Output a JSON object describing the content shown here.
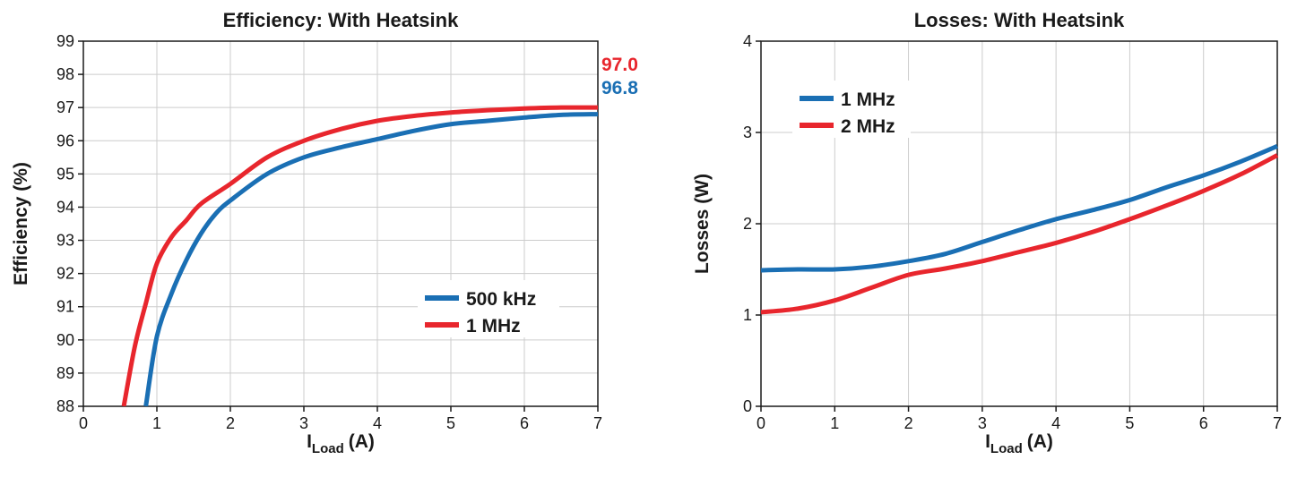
{
  "colors": {
    "blue": "#1a6fb4",
    "red": "#e8262d",
    "grid": "#cccccc",
    "axis": "#1a1a1a"
  },
  "chart_data": [
    {
      "type": "line",
      "title": "Efficiency: With Heatsink",
      "xlabel_main": "I",
      "xlabel_sub": "Load",
      "xlabel_unit": "(A)",
      "ylabel": "Efficiency (%)",
      "xlim": [
        0,
        7
      ],
      "ylim": [
        88,
        99
      ],
      "xticks": [
        "0",
        "1",
        "2",
        "3",
        "4",
        "5",
        "6",
        "7"
      ],
      "yticks": [
        "88",
        "89",
        "90",
        "91",
        "92",
        "93",
        "94",
        "95",
        "96",
        "97",
        "98",
        "99"
      ],
      "grid": true,
      "legend_position": "lower-right",
      "end_labels": [
        {
          "text": "97.0",
          "color": "#e8262d",
          "y": 97.0
        },
        {
          "text": "96.8",
          "color": "#1a6fb4",
          "y": 96.8
        }
      ],
      "series": [
        {
          "name": "500 kHz",
          "color": "#1a6fb4",
          "x": [
            0.85,
            1.0,
            1.2,
            1.4,
            1.6,
            1.8,
            2.0,
            2.5,
            3.0,
            3.5,
            4.0,
            4.5,
            5.0,
            5.5,
            6.0,
            6.5,
            7.0
          ],
          "y": [
            88.0,
            90.1,
            91.4,
            92.4,
            93.2,
            93.8,
            94.2,
            95.0,
            95.5,
            95.8,
            96.05,
            96.3,
            96.5,
            96.6,
            96.7,
            96.78,
            96.8
          ]
        },
        {
          "name": "1 MHz",
          "color": "#e8262d",
          "x": [
            0.55,
            0.7,
            0.85,
            1.0,
            1.2,
            1.4,
            1.6,
            2.0,
            2.5,
            3.0,
            3.5,
            4.0,
            4.5,
            5.0,
            5.5,
            6.0,
            6.5,
            7.0
          ],
          "y": [
            88.0,
            89.8,
            91.1,
            92.3,
            93.1,
            93.6,
            94.1,
            94.7,
            95.5,
            96.0,
            96.35,
            96.6,
            96.75,
            96.85,
            96.92,
            96.97,
            97.0,
            97.0
          ]
        }
      ]
    },
    {
      "type": "line",
      "title": "Losses: With Heatsink",
      "xlabel_main": "I",
      "xlabel_sub": "Load",
      "xlabel_unit": "(A)",
      "ylabel": "Losses (W)",
      "xlim": [
        0,
        7
      ],
      "ylim": [
        0,
        4
      ],
      "xticks": [
        "0",
        "1",
        "2",
        "3",
        "4",
        "5",
        "6",
        "7"
      ],
      "yticks": [
        "0",
        "1",
        "2",
        "3",
        "4"
      ],
      "grid": true,
      "legend_position": "top-left",
      "end_labels": [],
      "series": [
        {
          "name": "1 MHz",
          "color": "#1a6fb4",
          "x": [
            0,
            0.5,
            1.0,
            1.5,
            2.0,
            2.5,
            3.0,
            3.5,
            4.0,
            4.5,
            5.0,
            5.5,
            6.0,
            6.5,
            7.0
          ],
          "y": [
            1.49,
            1.5,
            1.5,
            1.53,
            1.59,
            1.67,
            1.8,
            1.93,
            2.05,
            2.15,
            2.26,
            2.4,
            2.53,
            2.68,
            2.85
          ]
        },
        {
          "name": "2 MHz",
          "color": "#e8262d",
          "x": [
            0,
            0.5,
            1.0,
            1.5,
            2.0,
            2.5,
            3.0,
            3.5,
            4.0,
            4.5,
            5.0,
            5.5,
            6.0,
            6.5,
            7.0
          ],
          "y": [
            1.03,
            1.07,
            1.16,
            1.3,
            1.44,
            1.51,
            1.59,
            1.69,
            1.79,
            1.91,
            2.05,
            2.2,
            2.36,
            2.54,
            2.75
          ]
        }
      ]
    }
  ]
}
